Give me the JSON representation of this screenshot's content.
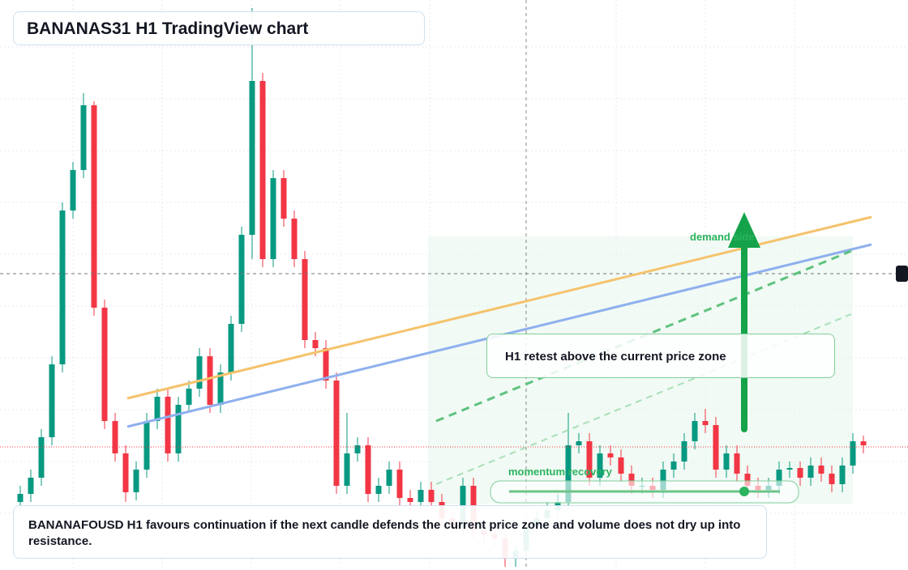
{
  "chart_data": {
    "type": "candlestick",
    "title": "BANANAS31 H1 TradingView chart",
    "annotations": [
      "demand side",
      "H1 retest above the current price zone",
      "momentum recovery"
    ],
    "footer": "BANANAFOUSD H1 favours continuation if the next candle defends the current price zone and volume does not dry up into resistance.",
    "up_color": "#089981",
    "down_color": "#f23645",
    "ylim": [
      -4,
      700
    ],
    "open": [
      80,
      90,
      110,
      160,
      250,
      440,
      490,
      570,
      320,
      180,
      140,
      92,
      120,
      180,
      210,
      140,
      200,
      220,
      260,
      200,
      240,
      300,
      410,
      600,
      380,
      480,
      430,
      380,
      280,
      270,
      230,
      100,
      140,
      150,
      90,
      100,
      120,
      85,
      80,
      95,
      80,
      60,
      50,
      100,
      45,
      40,
      35,
      10,
      20,
      50,
      60,
      70,
      80,
      150,
      155,
      110,
      140,
      135,
      115,
      100,
      100,
      95,
      120,
      130,
      155,
      180,
      175,
      120,
      140,
      115,
      100,
      95,
      100,
      120,
      122,
      110,
      125,
      115,
      102,
      125,
      155
    ],
    "high": [
      100,
      120,
      170,
      260,
      450,
      500,
      585,
      575,
      330,
      190,
      150,
      130,
      190,
      220,
      220,
      210,
      230,
      270,
      270,
      250,
      310,
      420,
      690,
      610,
      490,
      490,
      440,
      390,
      290,
      280,
      240,
      190,
      160,
      160,
      110,
      130,
      130,
      95,
      105,
      105,
      90,
      70,
      110,
      110,
      55,
      50,
      45,
      30,
      60,
      70,
      80,
      90,
      190,
      165,
      165,
      150,
      150,
      145,
      125,
      110,
      110,
      130,
      140,
      165,
      190,
      195,
      185,
      150,
      150,
      125,
      110,
      110,
      130,
      130,
      130,
      135,
      135,
      125,
      135,
      165,
      162
    ],
    "low": [
      70,
      80,
      100,
      150,
      240,
      430,
      480,
      310,
      170,
      130,
      80,
      82,
      110,
      170,
      130,
      130,
      190,
      210,
      190,
      190,
      230,
      290,
      380,
      370,
      370,
      420,
      370,
      270,
      260,
      220,
      90,
      90,
      130,
      80,
      80,
      90,
      75,
      70,
      70,
      70,
      50,
      40,
      40,
      35,
      30,
      25,
      0,
      0,
      10,
      40,
      50,
      60,
      70,
      140,
      100,
      100,
      125,
      105,
      90,
      90,
      85,
      85,
      110,
      120,
      145,
      165,
      110,
      110,
      105,
      90,
      85,
      85,
      90,
      110,
      100,
      100,
      105,
      92,
      92,
      115,
      140
    ],
    "close": [
      90,
      110,
      160,
      250,
      440,
      490,
      570,
      320,
      180,
      140,
      92,
      120,
      180,
      210,
      140,
      200,
      220,
      260,
      200,
      240,
      300,
      410,
      600,
      380,
      480,
      430,
      380,
      280,
      270,
      230,
      100,
      140,
      150,
      90,
      100,
      120,
      85,
      80,
      95,
      80,
      60,
      50,
      100,
      45,
      40,
      35,
      10,
      20,
      50,
      60,
      70,
      80,
      150,
      155,
      110,
      140,
      135,
      115,
      100,
      100,
      95,
      120,
      130,
      155,
      180,
      175,
      120,
      140,
      115,
      100,
      95,
      100,
      120,
      122,
      110,
      125,
      115,
      102,
      125,
      155,
      150
    ]
  }
}
